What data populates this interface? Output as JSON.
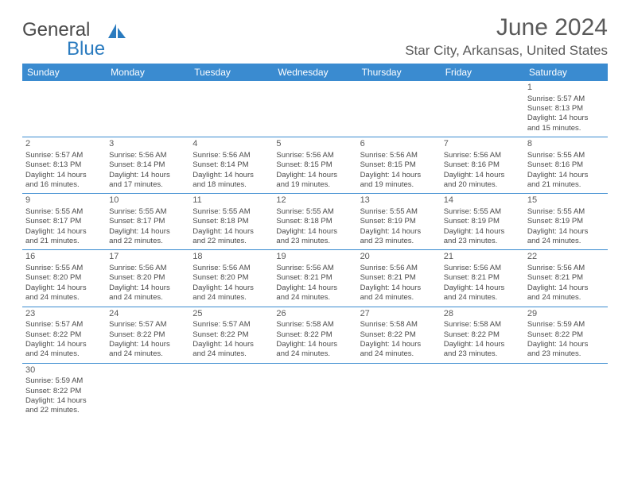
{
  "brand": {
    "general": "General",
    "blue": "Blue"
  },
  "header": {
    "title": "June 2024",
    "location": "Star City, Arkansas, United States"
  },
  "colors": {
    "header_bar": "#3a8bd0",
    "text": "#4a4a4a",
    "accent": "#2a7bbf"
  },
  "weekdays": [
    "Sunday",
    "Monday",
    "Tuesday",
    "Wednesday",
    "Thursday",
    "Friday",
    "Saturday"
  ],
  "weeks": [
    [
      null,
      null,
      null,
      null,
      null,
      null,
      {
        "n": "1",
        "sr": "Sunrise: 5:57 AM",
        "ss": "Sunset: 8:13 PM",
        "dl1": "Daylight: 14 hours",
        "dl2": "and 15 minutes."
      }
    ],
    [
      {
        "n": "2",
        "sr": "Sunrise: 5:57 AM",
        "ss": "Sunset: 8:13 PM",
        "dl1": "Daylight: 14 hours",
        "dl2": "and 16 minutes."
      },
      {
        "n": "3",
        "sr": "Sunrise: 5:56 AM",
        "ss": "Sunset: 8:14 PM",
        "dl1": "Daylight: 14 hours",
        "dl2": "and 17 minutes."
      },
      {
        "n": "4",
        "sr": "Sunrise: 5:56 AM",
        "ss": "Sunset: 8:14 PM",
        "dl1": "Daylight: 14 hours",
        "dl2": "and 18 minutes."
      },
      {
        "n": "5",
        "sr": "Sunrise: 5:56 AM",
        "ss": "Sunset: 8:15 PM",
        "dl1": "Daylight: 14 hours",
        "dl2": "and 19 minutes."
      },
      {
        "n": "6",
        "sr": "Sunrise: 5:56 AM",
        "ss": "Sunset: 8:15 PM",
        "dl1": "Daylight: 14 hours",
        "dl2": "and 19 minutes."
      },
      {
        "n": "7",
        "sr": "Sunrise: 5:56 AM",
        "ss": "Sunset: 8:16 PM",
        "dl1": "Daylight: 14 hours",
        "dl2": "and 20 minutes."
      },
      {
        "n": "8",
        "sr": "Sunrise: 5:55 AM",
        "ss": "Sunset: 8:16 PM",
        "dl1": "Daylight: 14 hours",
        "dl2": "and 21 minutes."
      }
    ],
    [
      {
        "n": "9",
        "sr": "Sunrise: 5:55 AM",
        "ss": "Sunset: 8:17 PM",
        "dl1": "Daylight: 14 hours",
        "dl2": "and 21 minutes."
      },
      {
        "n": "10",
        "sr": "Sunrise: 5:55 AM",
        "ss": "Sunset: 8:17 PM",
        "dl1": "Daylight: 14 hours",
        "dl2": "and 22 minutes."
      },
      {
        "n": "11",
        "sr": "Sunrise: 5:55 AM",
        "ss": "Sunset: 8:18 PM",
        "dl1": "Daylight: 14 hours",
        "dl2": "and 22 minutes."
      },
      {
        "n": "12",
        "sr": "Sunrise: 5:55 AM",
        "ss": "Sunset: 8:18 PM",
        "dl1": "Daylight: 14 hours",
        "dl2": "and 23 minutes."
      },
      {
        "n": "13",
        "sr": "Sunrise: 5:55 AM",
        "ss": "Sunset: 8:19 PM",
        "dl1": "Daylight: 14 hours",
        "dl2": "and 23 minutes."
      },
      {
        "n": "14",
        "sr": "Sunrise: 5:55 AM",
        "ss": "Sunset: 8:19 PM",
        "dl1": "Daylight: 14 hours",
        "dl2": "and 23 minutes."
      },
      {
        "n": "15",
        "sr": "Sunrise: 5:55 AM",
        "ss": "Sunset: 8:19 PM",
        "dl1": "Daylight: 14 hours",
        "dl2": "and 24 minutes."
      }
    ],
    [
      {
        "n": "16",
        "sr": "Sunrise: 5:55 AM",
        "ss": "Sunset: 8:20 PM",
        "dl1": "Daylight: 14 hours",
        "dl2": "and 24 minutes."
      },
      {
        "n": "17",
        "sr": "Sunrise: 5:56 AM",
        "ss": "Sunset: 8:20 PM",
        "dl1": "Daylight: 14 hours",
        "dl2": "and 24 minutes."
      },
      {
        "n": "18",
        "sr": "Sunrise: 5:56 AM",
        "ss": "Sunset: 8:20 PM",
        "dl1": "Daylight: 14 hours",
        "dl2": "and 24 minutes."
      },
      {
        "n": "19",
        "sr": "Sunrise: 5:56 AM",
        "ss": "Sunset: 8:21 PM",
        "dl1": "Daylight: 14 hours",
        "dl2": "and 24 minutes."
      },
      {
        "n": "20",
        "sr": "Sunrise: 5:56 AM",
        "ss": "Sunset: 8:21 PM",
        "dl1": "Daylight: 14 hours",
        "dl2": "and 24 minutes."
      },
      {
        "n": "21",
        "sr": "Sunrise: 5:56 AM",
        "ss": "Sunset: 8:21 PM",
        "dl1": "Daylight: 14 hours",
        "dl2": "and 24 minutes."
      },
      {
        "n": "22",
        "sr": "Sunrise: 5:56 AM",
        "ss": "Sunset: 8:21 PM",
        "dl1": "Daylight: 14 hours",
        "dl2": "and 24 minutes."
      }
    ],
    [
      {
        "n": "23",
        "sr": "Sunrise: 5:57 AM",
        "ss": "Sunset: 8:22 PM",
        "dl1": "Daylight: 14 hours",
        "dl2": "and 24 minutes."
      },
      {
        "n": "24",
        "sr": "Sunrise: 5:57 AM",
        "ss": "Sunset: 8:22 PM",
        "dl1": "Daylight: 14 hours",
        "dl2": "and 24 minutes."
      },
      {
        "n": "25",
        "sr": "Sunrise: 5:57 AM",
        "ss": "Sunset: 8:22 PM",
        "dl1": "Daylight: 14 hours",
        "dl2": "and 24 minutes."
      },
      {
        "n": "26",
        "sr": "Sunrise: 5:58 AM",
        "ss": "Sunset: 8:22 PM",
        "dl1": "Daylight: 14 hours",
        "dl2": "and 24 minutes."
      },
      {
        "n": "27",
        "sr": "Sunrise: 5:58 AM",
        "ss": "Sunset: 8:22 PM",
        "dl1": "Daylight: 14 hours",
        "dl2": "and 24 minutes."
      },
      {
        "n": "28",
        "sr": "Sunrise: 5:58 AM",
        "ss": "Sunset: 8:22 PM",
        "dl1": "Daylight: 14 hours",
        "dl2": "and 23 minutes."
      },
      {
        "n": "29",
        "sr": "Sunrise: 5:59 AM",
        "ss": "Sunset: 8:22 PM",
        "dl1": "Daylight: 14 hours",
        "dl2": "and 23 minutes."
      }
    ],
    [
      {
        "n": "30",
        "sr": "Sunrise: 5:59 AM",
        "ss": "Sunset: 8:22 PM",
        "dl1": "Daylight: 14 hours",
        "dl2": "and 22 minutes."
      },
      null,
      null,
      null,
      null,
      null,
      null
    ]
  ]
}
